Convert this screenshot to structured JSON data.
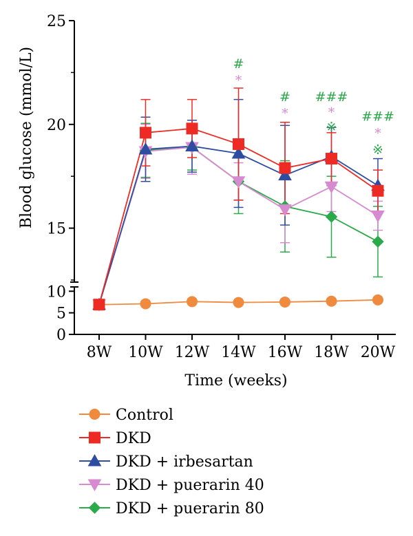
{
  "chart_data": {
    "type": "line",
    "xlabel": "Time (weeks)",
    "ylabel": "Blood glucose (mmol/L)",
    "categories": [
      "8W",
      "10W",
      "12W",
      "14W",
      "16W",
      "18W",
      "20W"
    ],
    "y_upper_ticks": [
      "15",
      "20",
      "25"
    ],
    "y_lower_ticks": [
      "0",
      "5",
      "10"
    ],
    "y_upper_range": [
      12.4,
      25
    ],
    "y_lower_range": [
      0,
      11
    ],
    "broken_axis": true,
    "legend_position": "bottom",
    "series": [
      {
        "name": "Control",
        "marker": "circle",
        "color": "#F08A3E",
        "values": [
          6.9,
          7.1,
          7.6,
          7.4,
          7.5,
          7.7,
          8.0
        ],
        "err": [
          0,
          0,
          0,
          0,
          0,
          0,
          0
        ]
      },
      {
        "name": "DKD",
        "marker": "square",
        "color": "#EE2A24",
        "values": [
          6.9,
          19.6,
          19.8,
          19.05,
          17.9,
          18.35,
          16.8
        ],
        "err": [
          0,
          1.6,
          1.4,
          2.7,
          2.2,
          1.25,
          1.0
        ]
      },
      {
        "name": "DKD + irbesartan",
        "marker": "triangle-up",
        "color": "#2F4DA0",
        "values": [
          6.9,
          18.8,
          18.95,
          18.6,
          17.55,
          18.45,
          17.05
        ],
        "err": [
          0,
          1.55,
          1.25,
          2.6,
          2.4,
          1.4,
          1.3
        ]
      },
      {
        "name": "DKD + puerarin 40",
        "marker": "triangle-down",
        "color": "#D88AD0",
        "values": [
          6.9,
          18.7,
          18.9,
          17.25,
          15.9,
          17.0,
          15.6
        ],
        "err": [
          0,
          1.3,
          1.3,
          0.9,
          1.6,
          1.2,
          0.7
        ]
      },
      {
        "name": "DKD + puerarin 80",
        "marker": "diamond",
        "color": "#2BAA4A",
        "values": [
          6.9,
          18.75,
          18.9,
          17.25,
          16.05,
          15.55,
          14.35
        ],
        "err": [
          0,
          1.3,
          1.1,
          1.55,
          2.2,
          1.95,
          1.7
        ]
      }
    ],
    "annotations": [
      {
        "category": "14W",
        "y": 22.95,
        "text": "#",
        "color": "#2BAA4A"
      },
      {
        "category": "14W",
        "y": 22.15,
        "text": "*",
        "color": "#D88AD0"
      },
      {
        "category": "16W",
        "y": 21.35,
        "text": "#",
        "color": "#2BAA4A"
      },
      {
        "category": "16W",
        "y": 20.55,
        "text": "*",
        "color": "#D88AD0"
      },
      {
        "category": "18W",
        "y": 21.35,
        "text": "###",
        "color": "#2BAA4A"
      },
      {
        "category": "18W",
        "y": 20.6,
        "text": "*",
        "color": "#D88AD0"
      },
      {
        "category": "18W",
        "y": 19.9,
        "text": "※",
        "color": "#2BAA4A"
      },
      {
        "category": "20W",
        "y": 20.4,
        "text": "###",
        "color": "#2BAA4A"
      },
      {
        "category": "20W",
        "y": 19.6,
        "text": "*",
        "color": "#D88AD0"
      },
      {
        "category": "20W",
        "y": 18.8,
        "text": "※",
        "color": "#2BAA4A"
      }
    ]
  }
}
